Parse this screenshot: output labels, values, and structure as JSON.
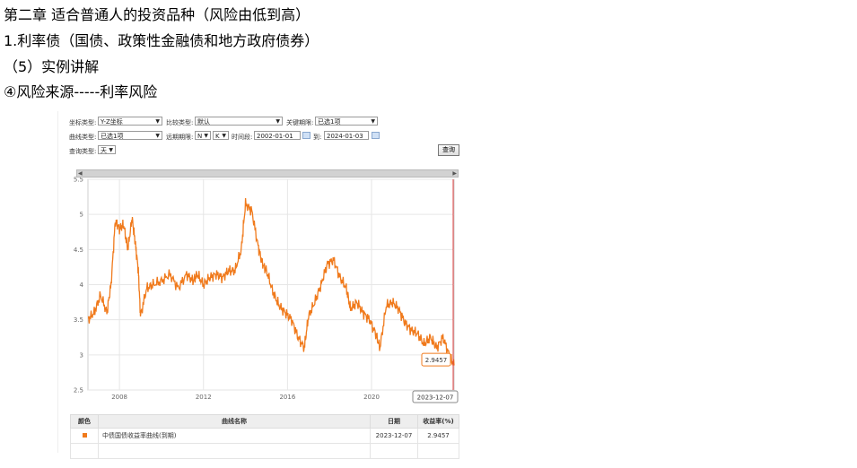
{
  "headings": {
    "line1": "第二章 适合普通人的投资品种（风险由低到高）",
    "line2": "1.利率债（国债、政策性金融债和地方政府债券）",
    "line3": "（5）实例讲解",
    "line4": "④风险来源-----利率风险"
  },
  "form": {
    "coord_type_label": "坐标类型:",
    "coord_type_value": "Y-Z坐标",
    "compare_type_label": "比较类型:",
    "compare_type_value": "默认",
    "key_term_label": "关键期限:",
    "key_term_value": "已选1项",
    "curve_type_label": "曲线类型:",
    "curve_type_value": "已选1项",
    "forward_term_label": "远期期限:",
    "forward_n": "N",
    "forward_k": "K",
    "time_range_label": "时间段:",
    "date_from": "2002-01-01",
    "to_label": "到:",
    "date_to": "2024-01-03",
    "query_type_label": "查询类型:",
    "query_type_value": "天",
    "query_button": "查询"
  },
  "colors": {
    "series": "#f07a1c",
    "cursor": "#e04040"
  },
  "chart_data": {
    "type": "line",
    "title": "",
    "xlabel": "",
    "ylabel": "",
    "ylim": [
      2.5,
      5.5
    ],
    "yticks": [
      "2.5",
      "3",
      "3.5",
      "4",
      "4.5",
      "5",
      "5.5"
    ],
    "xticks": [
      "2008",
      "2012",
      "2016",
      "2020"
    ],
    "grid": true,
    "series": [
      {
        "name": "中债国债收益率曲线(到期)",
        "x": [
          2006.5,
          2006.8,
          2007.1,
          2007.4,
          2007.6,
          2007.8,
          2008.0,
          2008.2,
          2008.4,
          2008.6,
          2008.75,
          2008.9,
          2009.0,
          2009.3,
          2009.6,
          2010.0,
          2010.4,
          2010.8,
          2011.2,
          2011.5,
          2011.7,
          2012.0,
          2012.3,
          2012.6,
          2012.9,
          2013.2,
          2013.5,
          2013.8,
          2014.0,
          2014.3,
          2014.6,
          2014.8,
          2015.0,
          2015.3,
          2015.6,
          2015.9,
          2016.2,
          2016.5,
          2016.8,
          2017.0,
          2017.3,
          2017.6,
          2017.9,
          2018.2,
          2018.5,
          2018.8,
          2019.0,
          2019.3,
          2019.6,
          2019.9,
          2020.2,
          2020.4,
          2020.7,
          2021.0,
          2021.3,
          2021.6,
          2021.9,
          2022.2,
          2022.5,
          2022.8,
          2023.1,
          2023.4,
          2023.7,
          2023.93
        ],
        "y": [
          3.5,
          3.6,
          3.85,
          3.6,
          4.0,
          4.9,
          4.8,
          4.85,
          4.5,
          4.95,
          4.6,
          4.2,
          3.55,
          3.95,
          4.0,
          4.05,
          4.15,
          3.95,
          4.15,
          4.05,
          4.15,
          4.0,
          4.1,
          4.15,
          4.1,
          4.2,
          4.2,
          4.5,
          5.15,
          5.05,
          4.55,
          4.3,
          4.2,
          3.9,
          3.7,
          3.6,
          3.5,
          3.25,
          3.1,
          3.55,
          3.75,
          4.0,
          4.3,
          4.35,
          4.1,
          3.95,
          3.65,
          3.75,
          3.6,
          3.5,
          3.3,
          3.1,
          3.7,
          3.75,
          3.65,
          3.45,
          3.35,
          3.3,
          3.15,
          3.25,
          3.1,
          3.25,
          3.0,
          2.85
        ]
      }
    ],
    "cursor": {
      "label": "2023-12-07",
      "value": "2.9457"
    }
  },
  "table": {
    "headers": {
      "color": "颜色",
      "name": "曲线名称",
      "date": "日期",
      "yield": "收益率(%)"
    },
    "rows": [
      {
        "name": "中债国债收益率曲线(到期)",
        "date": "2023-12-07",
        "yield": "2.9457"
      }
    ]
  }
}
